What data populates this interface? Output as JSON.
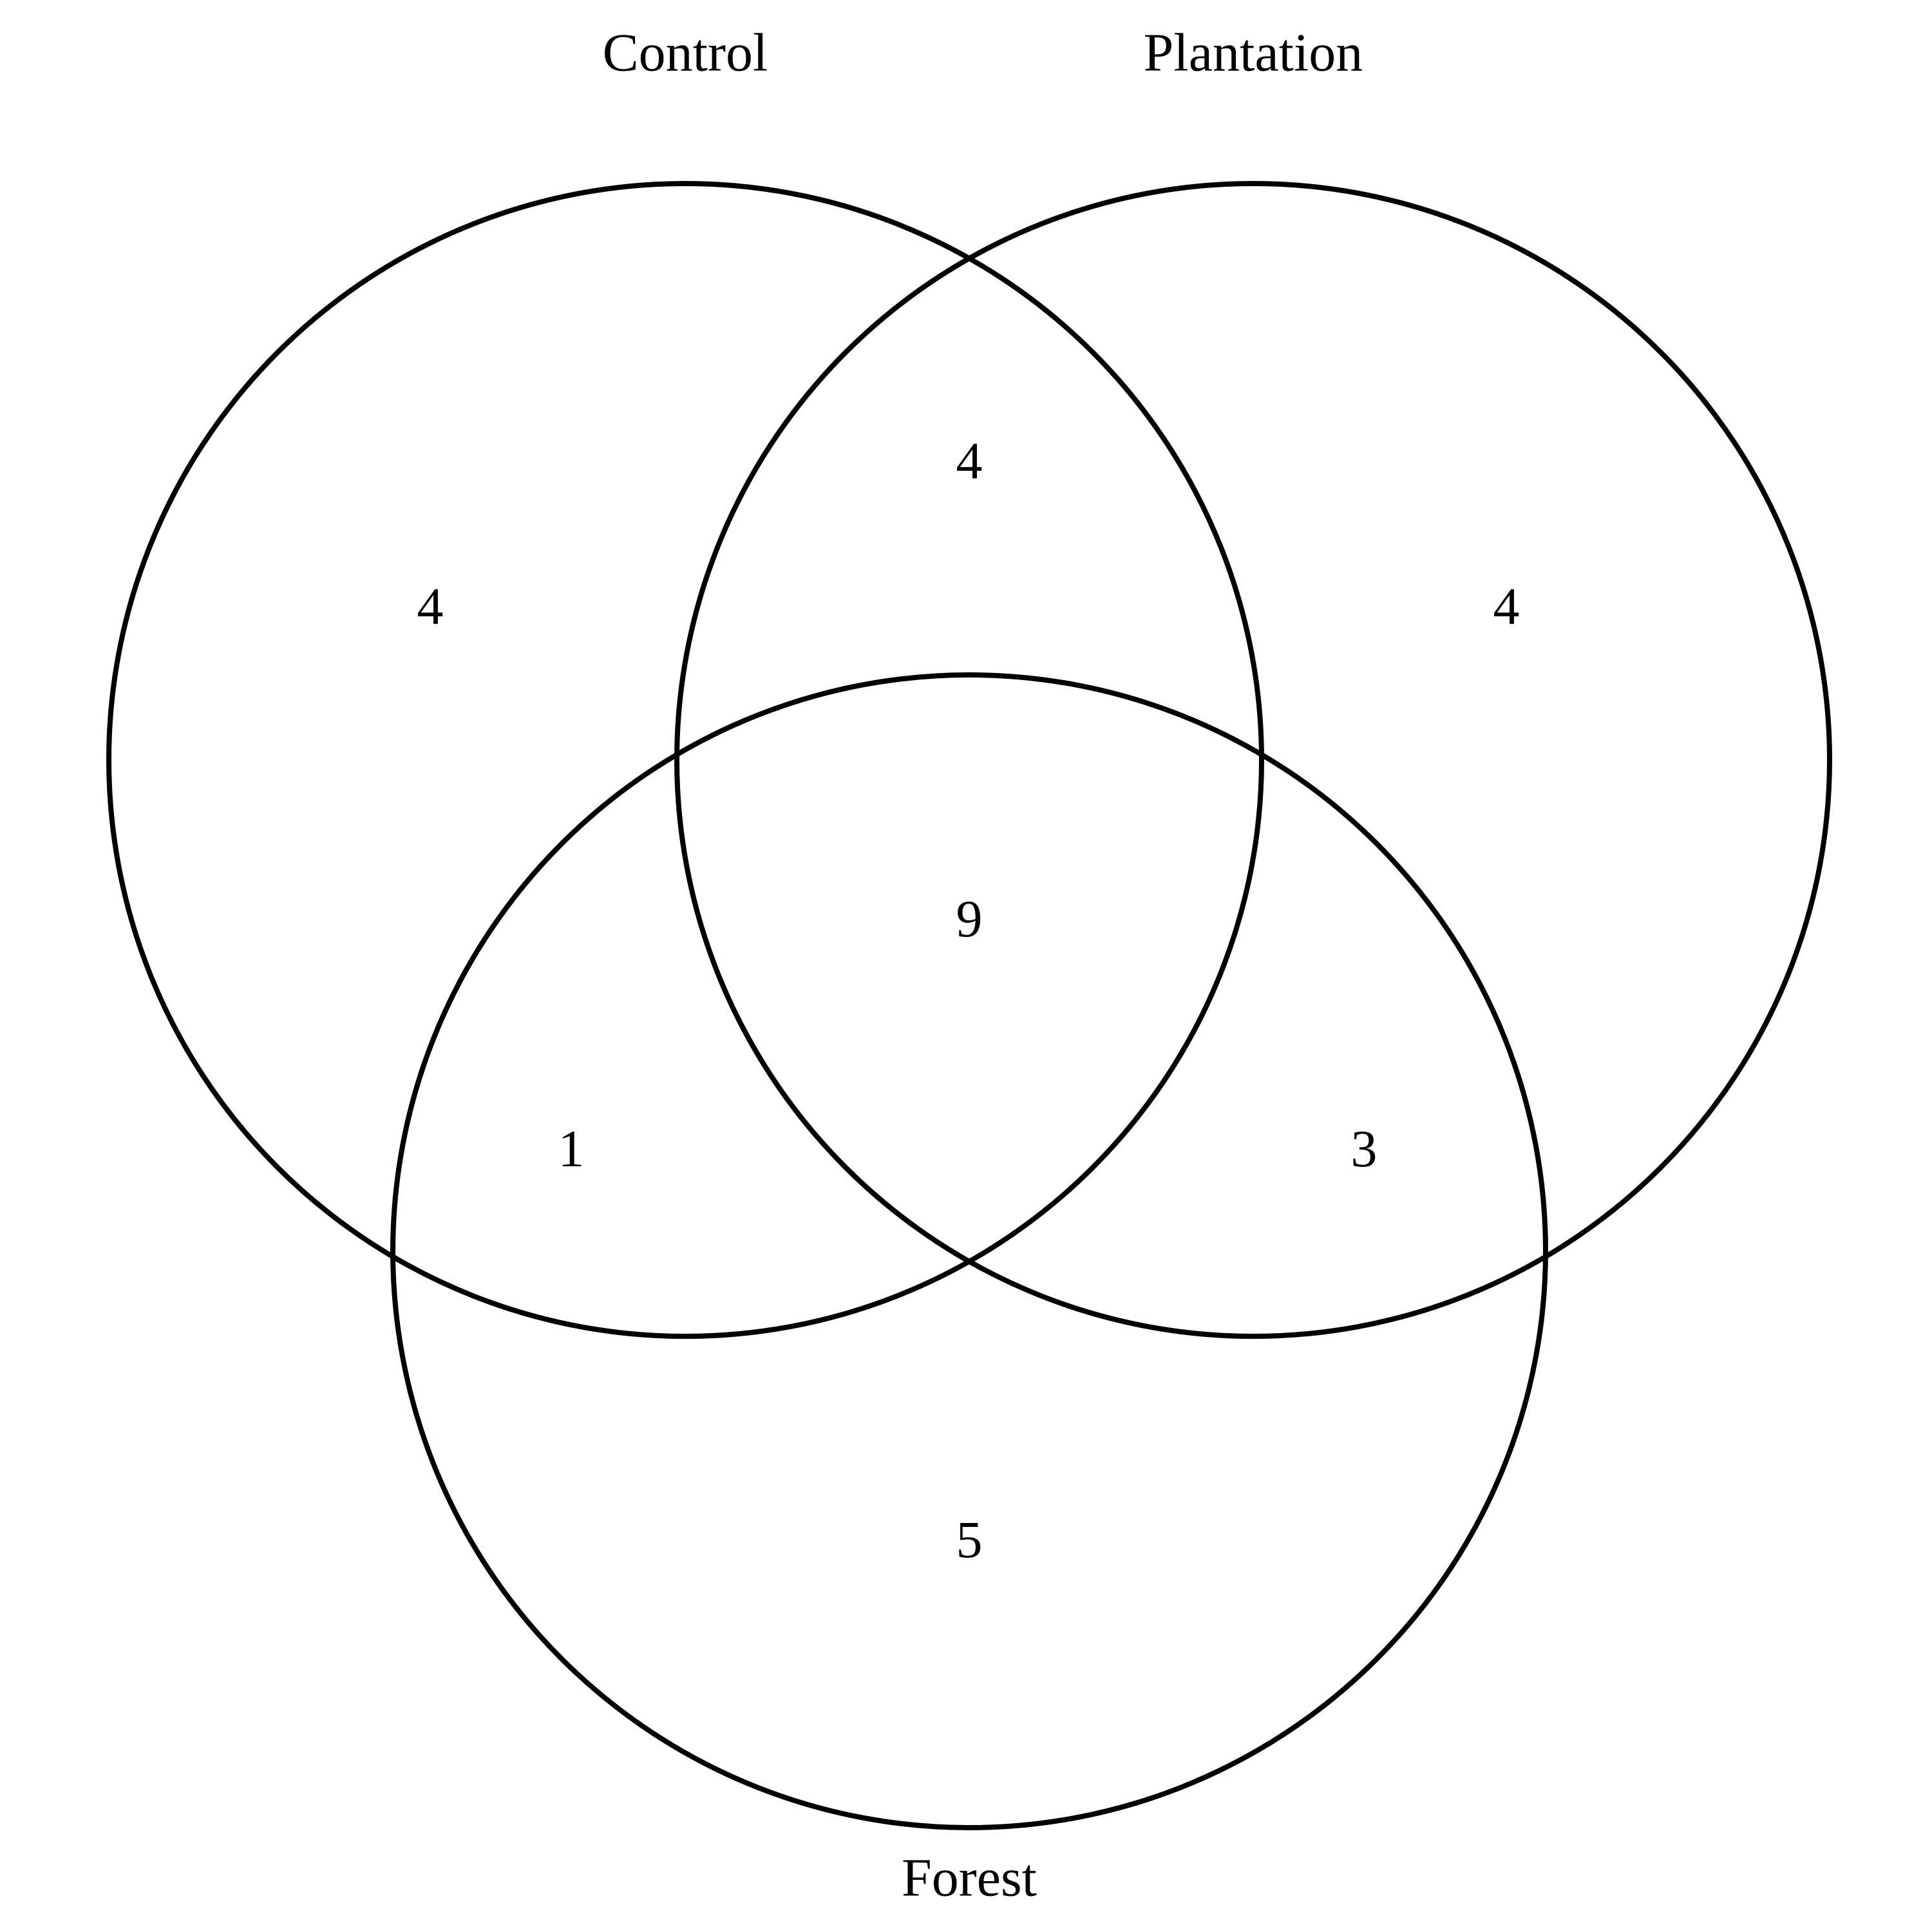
{
  "diagram": {
    "type": "venn-3",
    "sets": {
      "control": {
        "label": "Control"
      },
      "plantation": {
        "label": "Plantation"
      },
      "forest": {
        "label": "Forest"
      }
    },
    "regions": {
      "control_only": "4",
      "plantation_only": "4",
      "forest_only": "5",
      "control_plantation": "4",
      "control_forest": "1",
      "plantation_forest": "3",
      "all_three": "9"
    },
    "colors": {
      "stroke": "#000000",
      "background": "#ffffff"
    }
  }
}
